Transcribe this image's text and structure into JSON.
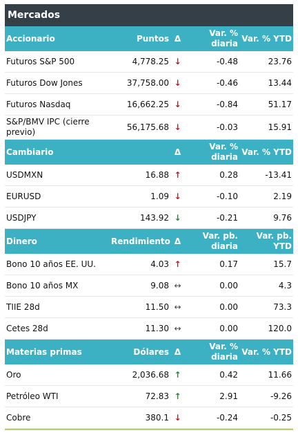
{
  "title": "Mercados",
  "colors": {
    "header_bg": "#3cb1c4",
    "title_bg": "#353f47",
    "arrow_red": "#c8161d",
    "arrow_green": "#1f8a2b"
  },
  "sections": [
    {
      "headers": [
        "Accionario",
        "Puntos",
        "Δ",
        "Var. % diaria",
        "Var. % YTD"
      ],
      "rows": [
        {
          "name": "Futuros S&P 500",
          "value": "4,778.25",
          "arrow": "↓",
          "arrow_icon": "arrow-down-red",
          "daily": "-0.48",
          "ytd": "23.76"
        },
        {
          "name": "Futuros Dow Jones",
          "value": "37,758.00",
          "arrow": "↓",
          "arrow_icon": "arrow-down-red",
          "daily": "-0.46",
          "ytd": "13.44"
        },
        {
          "name": "Futuros Nasdaq",
          "value": "16,662.25",
          "arrow": "↓",
          "arrow_icon": "arrow-down-red",
          "daily": "-0.84",
          "ytd": "51.17"
        },
        {
          "name": "S&P/BMV IPC (cierre previo)",
          "value": "56,175.68",
          "arrow": "↓",
          "arrow_icon": "arrow-down-red",
          "daily": "-0.03",
          "ytd": "15.91"
        }
      ]
    },
    {
      "headers": [
        "Cambiario",
        "",
        "Δ",
        "Var. % diaria",
        "Var. % YTD"
      ],
      "rows": [
        {
          "name": "USDMXN",
          "value": "16.88",
          "arrow": "↑",
          "arrow_icon": "arrow-up-red",
          "daily": "0.28",
          "ytd": "-13.41"
        },
        {
          "name": "EURUSD",
          "value": "1.09",
          "arrow": "↓",
          "arrow_icon": "arrow-down-red",
          "daily": "-0.10",
          "ytd": "2.19"
        },
        {
          "name": "USDJPY",
          "value": "143.92",
          "arrow": "↓",
          "arrow_icon": "arrow-down-green",
          "daily": "-0.21",
          "ytd": "9.76"
        }
      ]
    },
    {
      "headers": [
        "Dinero",
        "Rendimiento",
        "Δ",
        "Var. pb. diaria",
        "Var. pb. YTD"
      ],
      "rows": [
        {
          "name": "Bono 10 años EE. UU.",
          "value": "4.03",
          "arrow": "↑",
          "arrow_icon": "arrow-up-red",
          "daily": "0.17",
          "ytd": "15.7"
        },
        {
          "name": "Bono 10 años MX",
          "value": "9.08",
          "arrow": "↔",
          "arrow_icon": "arrow-flat",
          "daily": "0.00",
          "ytd": "4.3"
        },
        {
          "name": "TIIE 28d",
          "value": "11.50",
          "arrow": "↔",
          "arrow_icon": "arrow-flat",
          "daily": "0.00",
          "ytd": "73.3"
        },
        {
          "name": "Cetes 28d",
          "value": "11.30",
          "arrow": "↔",
          "arrow_icon": "arrow-flat",
          "daily": "0.00",
          "ytd": "120.0"
        }
      ]
    },
    {
      "headers": [
        "Materias primas",
        "Dólares",
        "Δ",
        "Var. % diaria",
        "Var. % YTD"
      ],
      "rows": [
        {
          "name": "Oro",
          "value": "2,036.68",
          "arrow": "↑",
          "arrow_icon": "arrow-up-green",
          "daily": "0.42",
          "ytd": "11.66"
        },
        {
          "name": "Petróleo WTI",
          "value": "72.83",
          "arrow": "↑",
          "arrow_icon": "arrow-up-green",
          "daily": "2.91",
          "ytd": "-9.26"
        },
        {
          "name": "Cobre",
          "value": "380.1",
          "arrow": "↓",
          "arrow_icon": "arrow-down-red",
          "daily": "-0.24",
          "ytd": "-0.25"
        }
      ]
    }
  ]
}
